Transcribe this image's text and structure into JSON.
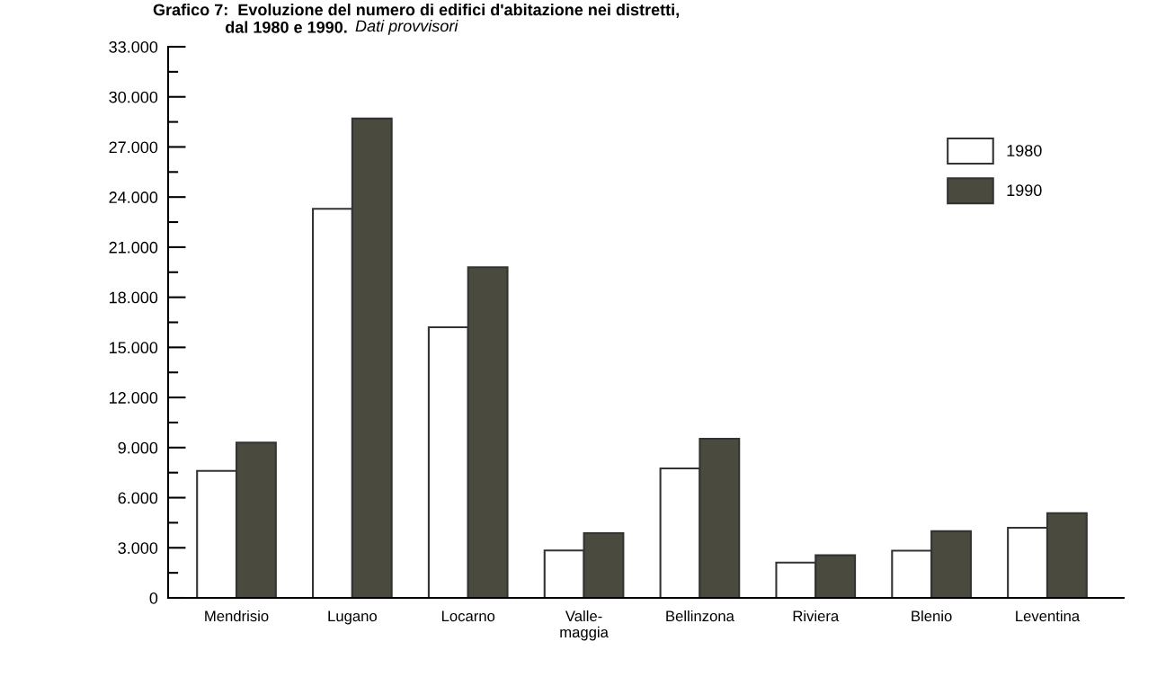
{
  "chart_data": {
    "type": "bar",
    "title": "Grafico 7:  Evoluzione del numero di edifici d'abitazione nei distretti,\n                dal 1980 e 1990.",
    "subtitle": "Dati provvisori",
    "categories": [
      "Mendrisio",
      "Lugano",
      "Locarno",
      "Valle-\nmaggia",
      "Bellinzona",
      "Riviera",
      "Blenio",
      "Leventina"
    ],
    "series": [
      {
        "name": "1980",
        "color": "#ffffff",
        "values": [
          7600,
          23300,
          16200,
          2840,
          7750,
          2110,
          2830,
          4200
        ]
      },
      {
        "name": "1990",
        "color": "#4a4a3e",
        "values": [
          9300,
          28700,
          19800,
          3880,
          9530,
          2550,
          3990,
          5070
        ]
      }
    ],
    "ylim": [
      0,
      33000
    ],
    "yticks": [
      {
        "value": 0,
        "label": "0"
      },
      {
        "value": 1500,
        "label": null
      },
      {
        "value": 3000,
        "label": "3.000"
      },
      {
        "value": 4500,
        "label": null
      },
      {
        "value": 6000,
        "label": "6.000"
      },
      {
        "value": 7500,
        "label": null
      },
      {
        "value": 9000,
        "label": "9.000"
      },
      {
        "value": 10500,
        "label": null
      },
      {
        "value": 12000,
        "label": "12.000"
      },
      {
        "value": 13500,
        "label": null
      },
      {
        "value": 15000,
        "label": "15.000"
      },
      {
        "value": 16500,
        "label": null
      },
      {
        "value": 18000,
        "label": "18.000"
      },
      {
        "value": 19500,
        "label": null
      },
      {
        "value": 21000,
        "label": "21.000"
      },
      {
        "value": 22500,
        "label": null
      },
      {
        "value": 24000,
        "label": "24.000"
      },
      {
        "value": 25500,
        "label": null
      },
      {
        "value": 27000,
        "label": "27.000"
      },
      {
        "value": 28500,
        "label": null
      },
      {
        "value": 30000,
        "label": "30.000"
      },
      {
        "value": 31500,
        "label": null
      },
      {
        "value": 33000,
        "label": "33.000"
      }
    ],
    "grid": false,
    "legend": "top right"
  }
}
